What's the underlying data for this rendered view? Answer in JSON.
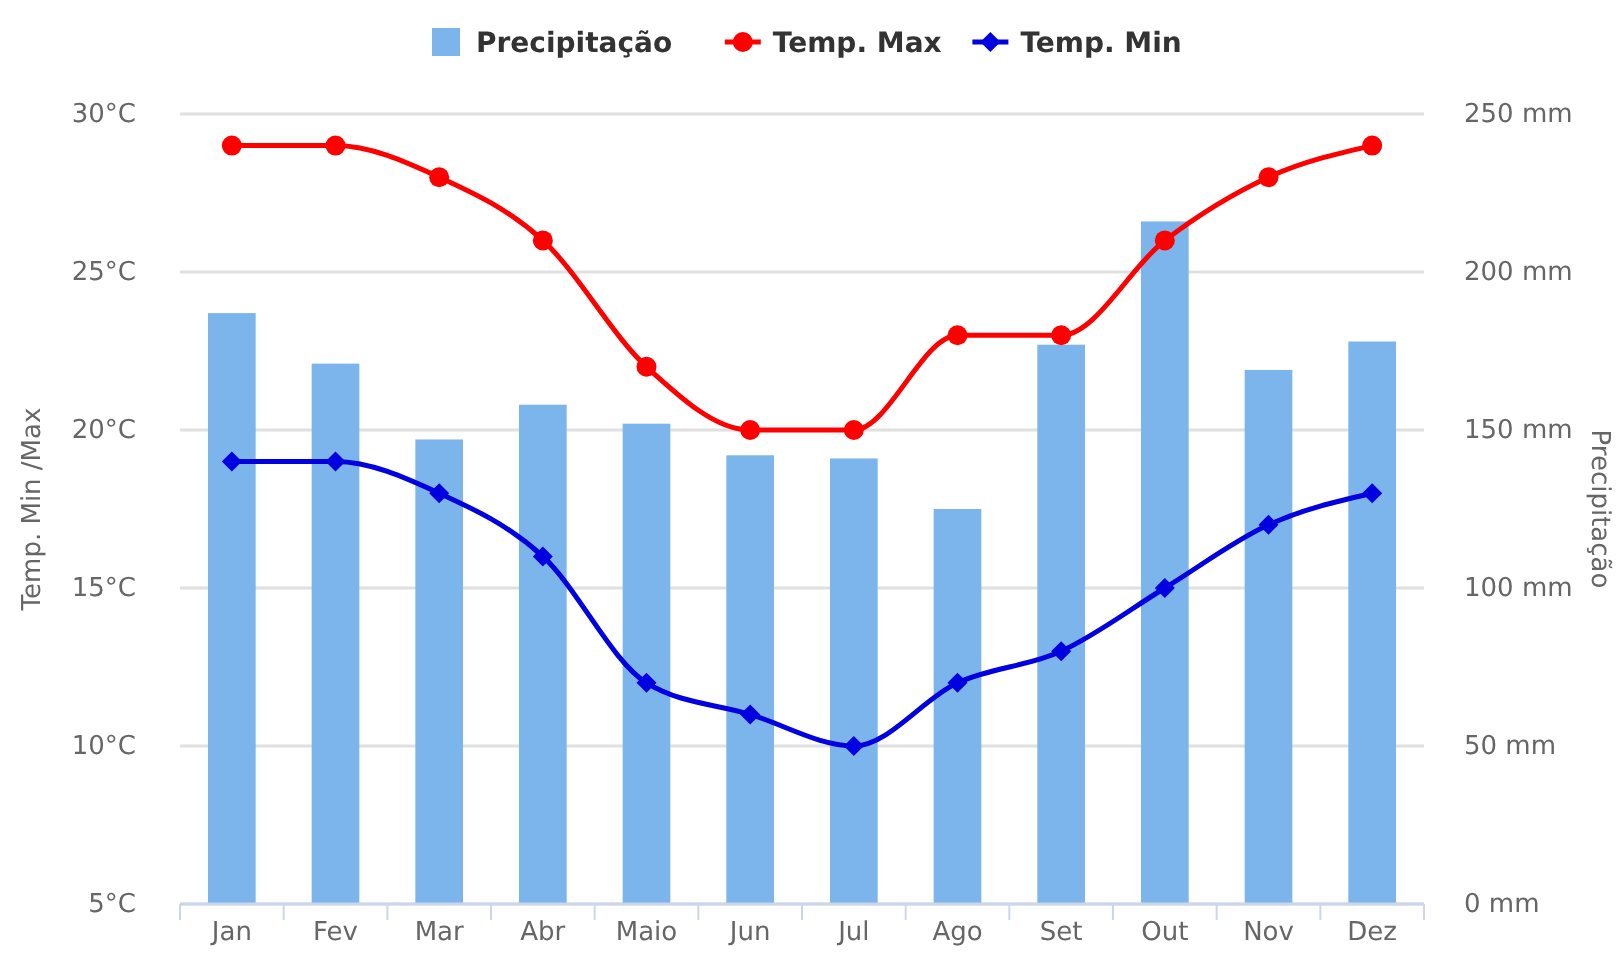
{
  "chart_data": {
    "type": "bar",
    "categories": [
      "Jan",
      "Fev",
      "Mar",
      "Abr",
      "Maio",
      "Jun",
      "Jul",
      "Ago",
      "Set",
      "Out",
      "Nov",
      "Dez"
    ],
    "ylabel": "Temp. Min /Max",
    "y2label": "Precipitação",
    "ylim": [
      5,
      30
    ],
    "yticks": [
      {
        "value": 5,
        "label": "5°C"
      },
      {
        "value": 10,
        "label": "10°C"
      },
      {
        "value": 15,
        "label": "15°C"
      },
      {
        "value": 20,
        "label": "20°C"
      },
      {
        "value": 25,
        "label": "25°C"
      },
      {
        "value": 30,
        "label": "30°C"
      }
    ],
    "y2lim": [
      0,
      250
    ],
    "y2ticks": [
      {
        "value": 0,
        "label": "0 mm"
      },
      {
        "value": 50,
        "label": "50 mm"
      },
      {
        "value": 100,
        "label": "100 mm"
      },
      {
        "value": 150,
        "label": "150 mm"
      },
      {
        "value": 200,
        "label": "200 mm"
      },
      {
        "value": 250,
        "label": "250 mm"
      }
    ],
    "grid": "y",
    "legend": "top",
    "series": [
      {
        "name": "Precipitação",
        "axis": "y2",
        "color": "#7cb5ec",
        "values": [
          187,
          171,
          147,
          158,
          152,
          142,
          141,
          125,
          177,
          216,
          169,
          178
        ]
      },
      {
        "name": "Temp. Max",
        "type": "line",
        "color": "#ff0000",
        "marker": "circle",
        "values": [
          29,
          29,
          28,
          26,
          22,
          20,
          20,
          23,
          23,
          26,
          28,
          29
        ]
      },
      {
        "name": "Temp. Min",
        "type": "line",
        "color": "#0000e0",
        "marker": "diamond",
        "values": [
          19,
          19,
          18,
          16,
          12,
          11,
          10,
          12,
          13,
          15,
          17,
          18
        ]
      }
    ]
  }
}
